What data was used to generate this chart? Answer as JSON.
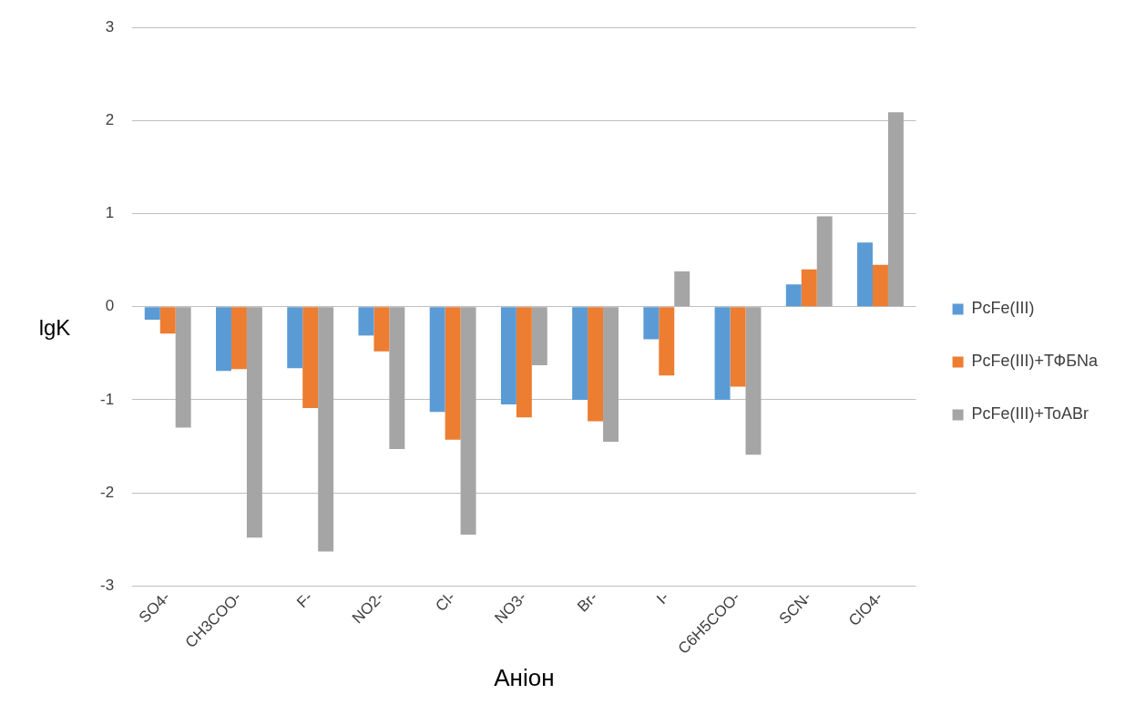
{
  "chart_data": {
    "type": "bar",
    "xlabel": "Аніон",
    "ylabel": "lgK",
    "categories": [
      "SO4-",
      "CH3COO-",
      "F-",
      "NO2-",
      "Cl-",
      "NO3-",
      "Br-",
      "I-",
      "C6H5COO-",
      "SCN-",
      "ClO4-"
    ],
    "series": [
      {
        "name": "PcFe(III)",
        "color": "#5b9bd5",
        "values": [
          -0.14,
          -0.69,
          -0.66,
          -0.31,
          -1.13,
          -1.05,
          -1.0,
          -0.35,
          -1.0,
          0.24,
          0.69
        ]
      },
      {
        "name": "PcFe(III)+ТФБNa",
        "color": "#ed7d31",
        "values": [
          -0.29,
          -0.67,
          -1.09,
          -0.48,
          -1.43,
          -1.19,
          -1.23,
          -0.74,
          -0.86,
          0.4,
          0.45
        ]
      },
      {
        "name": "PcFe(III)+ToABr",
        "color": "#a5a5a5",
        "values": [
          -1.3,
          -2.48,
          -2.63,
          -1.53,
          -2.45,
          -0.63,
          -1.45,
          0.38,
          -1.59,
          0.97,
          2.09
        ]
      }
    ],
    "ylim": [
      -3,
      3
    ],
    "yticks": [
      -3,
      -2,
      -1,
      0,
      1,
      2,
      3
    ],
    "grid": "y",
    "legend": "right"
  }
}
